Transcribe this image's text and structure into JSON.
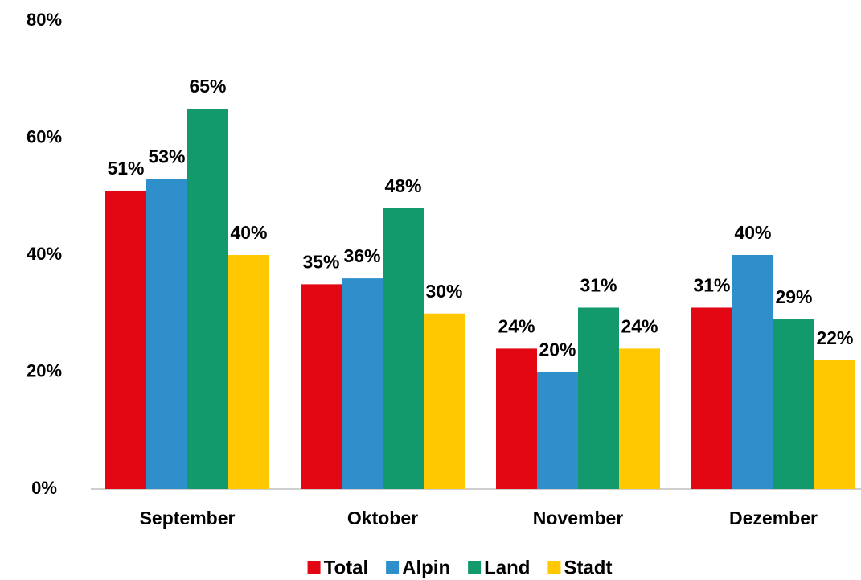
{
  "chart_data": {
    "type": "bar",
    "categories": [
      "September",
      "Oktober",
      "November",
      "Dezember"
    ],
    "series": [
      {
        "name": "Total",
        "color": "#e30613",
        "values": [
          51,
          35,
          24,
          31
        ],
        "value_labels": [
          "51%",
          "35%",
          "24%",
          "31%"
        ]
      },
      {
        "name": "Alpin",
        "color": "#2e8fcb",
        "values": [
          53,
          36,
          20,
          40
        ],
        "value_labels": [
          "53%",
          "36%",
          "20%",
          "40%"
        ]
      },
      {
        "name": "Land",
        "color": "#139a6c",
        "values": [
          65,
          48,
          31,
          29
        ],
        "value_labels": [
          "65%",
          "48%",
          "31%",
          "29%"
        ]
      },
      {
        "name": "Stadt",
        "color": "#ffc800",
        "values": [
          40,
          30,
          24,
          22
        ],
        "value_labels": [
          "40%",
          "30%",
          "24%",
          "22%"
        ]
      }
    ],
    "ylim": [
      0,
      80
    ],
    "yticks": [
      {
        "value": 0,
        "label": "0%"
      },
      {
        "value": 20,
        "label": "20%"
      },
      {
        "value": 40,
        "label": "40%"
      },
      {
        "value": 60,
        "label": "60%"
      },
      {
        "value": 80,
        "label": "80%"
      }
    ],
    "grid": false,
    "legend": "bottom"
  }
}
